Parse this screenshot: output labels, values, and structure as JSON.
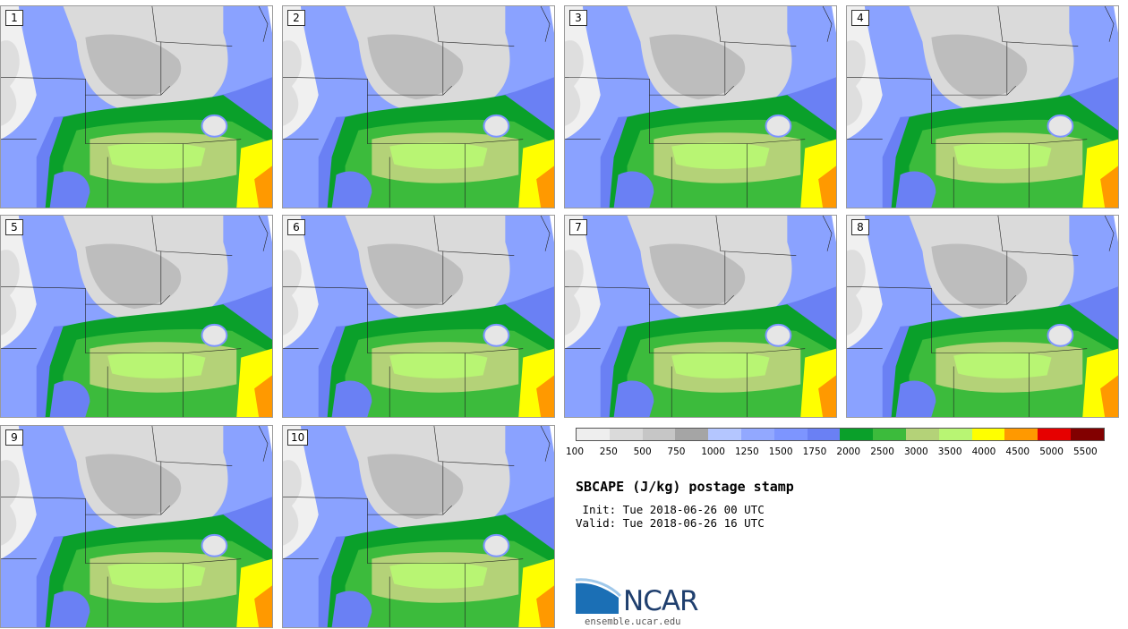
{
  "panels": [
    "1",
    "2",
    "3",
    "4",
    "5",
    "6",
    "7",
    "8",
    "9",
    "10"
  ],
  "legend": {
    "colors": [
      "#eeeeee",
      "#dadada",
      "#c6c6c6",
      "#a5a5a5",
      "#b4c6ff",
      "#92a8ff",
      "#7d95ff",
      "#6a80f4",
      "#0aa02a",
      "#3cbb3c",
      "#b4d278",
      "#b8f573",
      "#ffff00",
      "#ff9900",
      "#e60000",
      "#820000"
    ],
    "labels": [
      "100",
      "250",
      "500",
      "750",
      "1000",
      "1250",
      "1500",
      "1750",
      "2000",
      "2500",
      "3000",
      "3500",
      "4000",
      "4500",
      "5000",
      "5500"
    ]
  },
  "title": "SBCAPE (J/kg) postage stamp",
  "init": " Init: Tue 2018-06-26 00 UTC",
  "valid": "Valid: Tue 2018-06-26 16 UTC",
  "logo": {
    "name": "NCAR",
    "url": "ensemble.ucar.edu"
  }
}
